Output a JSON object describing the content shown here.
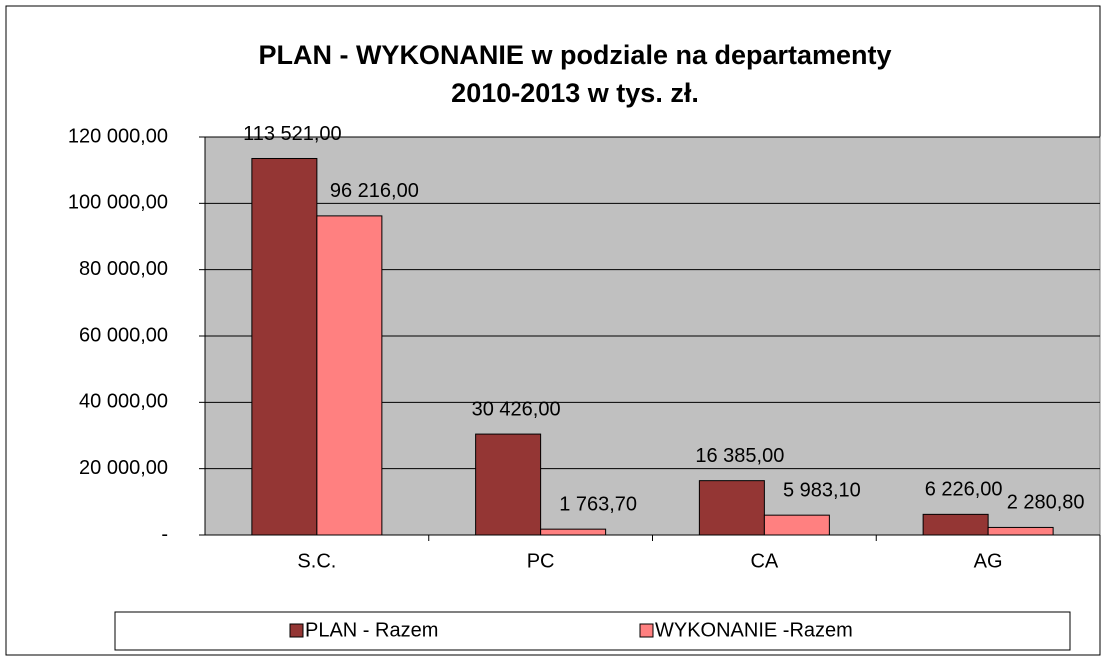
{
  "chart_data": {
    "type": "bar",
    "title": [
      "PLAN - WYKONANIE w podziale na departamenty",
      "2010-2013 w tys. zł."
    ],
    "categories": [
      "S.C.",
      "PC",
      "CA",
      "AG"
    ],
    "series": [
      {
        "name": "PLAN - Razem",
        "color": "#943634",
        "values": [
          113521,
          30426,
          16385,
          6226
        ],
        "value_labels": [
          "113 521,00",
          "30 426,00",
          "16 385,00",
          "6 226,00"
        ]
      },
      {
        "name": "WYKONANIE -Razem",
        "color": "#ff8080",
        "values": [
          96216,
          1763.7,
          5983.1,
          2280.8
        ],
        "value_labels": [
          "96 216,00",
          "1 763,70",
          "5 983,10",
          "2 280,80"
        ]
      }
    ],
    "ylim": [
      0,
      120000
    ],
    "yticks": [
      {
        "value": 0,
        "label": "-"
      },
      {
        "value": 20000,
        "label": "20 000,00"
      },
      {
        "value": 40000,
        "label": "40 000,00"
      },
      {
        "value": 60000,
        "label": "60 000,00"
      },
      {
        "value": 80000,
        "label": "80 000,00"
      },
      {
        "value": 100000,
        "label": "100 000,00"
      },
      {
        "value": 120000,
        "label": "120 000,00"
      }
    ],
    "grid": true,
    "legend": "bottom",
    "plot_background": "#c0c0c0"
  }
}
